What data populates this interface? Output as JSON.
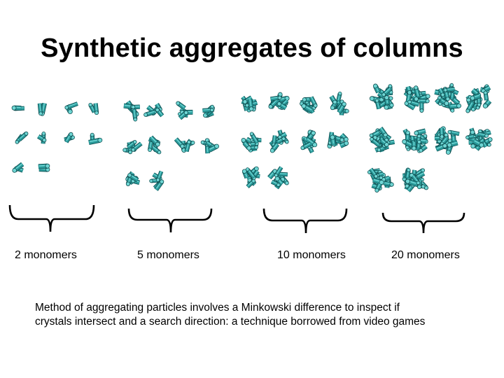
{
  "slide": {
    "title": "Synthetic aggregates of columns",
    "groups": [
      {
        "label": "2 monomers",
        "aggregate_count": 10,
        "monomers_per_aggregate": 2
      },
      {
        "label": "5 monomers",
        "aggregate_count": 10,
        "monomers_per_aggregate": 5
      },
      {
        "label": "10 monomers",
        "aggregate_count": 10,
        "monomers_per_aggregate": 10
      },
      {
        "label": "20 monomers",
        "aggregate_count": 10,
        "monomers_per_aggregate": 20
      }
    ],
    "description": "Method of aggregating particles involves a Minkowski difference to inspect if crystals intersect and a search direction: a technique borrowed from video games"
  },
  "colors": {
    "crystal_fill": "#2a9a9a",
    "crystal_edge": "#0e4e50",
    "crystal_highlight": "#6fd6d4",
    "text": "#000000"
  }
}
